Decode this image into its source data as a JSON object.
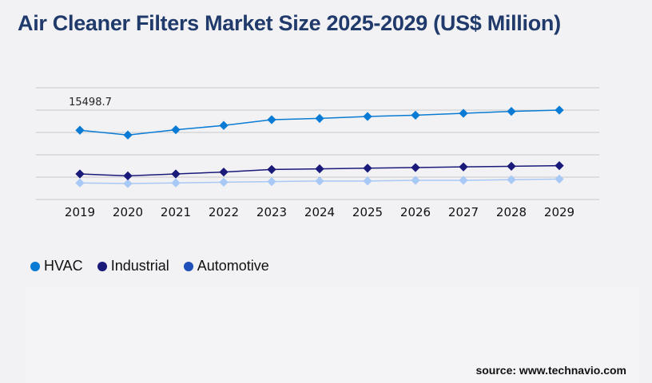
{
  "title": "Air Cleaner Filters Market Size 2025-2029 (US$ Million)",
  "source": "source: www.technavio.com",
  "chart_data": {
    "type": "line",
    "title": "Air Cleaner Filters Market Size 2025-2029 (US$ Million)",
    "categories": [
      "2019",
      "2020",
      "2021",
      "2022",
      "2023",
      "2024",
      "2025",
      "2026",
      "2027",
      "2028",
      "2029"
    ],
    "ylim": [
      0,
      25000
    ],
    "grid": true,
    "legend_position": "bottom-left",
    "annotation": "15498.7",
    "series": [
      {
        "name": "HVAC",
        "color": "#0a7bd4",
        "legend_color": "#0a7bd4",
        "values": [
          15498.7,
          14430,
          15600,
          16570,
          17860,
          18140,
          18570,
          18860,
          19290,
          19710,
          20000
        ]
      },
      {
        "name": "Industrial",
        "color": "#1a1a7a",
        "legend_color": "#1a1a7a",
        "values": [
          5710,
          5290,
          5710,
          6140,
          6710,
          6860,
          7000,
          7140,
          7290,
          7430,
          7570
        ]
      },
      {
        "name": "Automotive",
        "color": "#a8c8f5",
        "legend_color": "#1f4fb8",
        "values": [
          3710,
          3570,
          3710,
          3860,
          4000,
          4140,
          4140,
          4290,
          4290,
          4430,
          4570
        ]
      }
    ]
  }
}
